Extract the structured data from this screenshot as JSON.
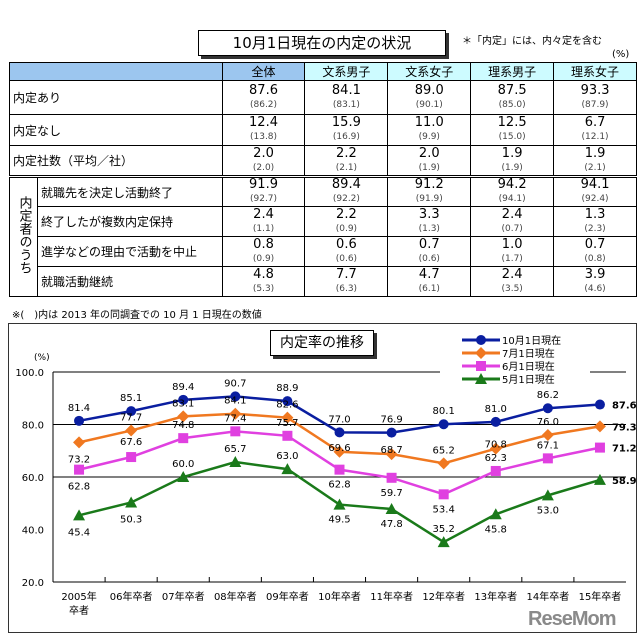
{
  "table": {
    "title": "10月1日現在の内定の状況",
    "note": "＊「内定」には、内々定を含む",
    "unit": "(%)",
    "columns": [
      "全体",
      "文系男子",
      "文系女子",
      "理系男子",
      "理系女子"
    ],
    "rows": [
      {
        "label": "内定あり",
        "values": [
          "87.6",
          "84.1",
          "89.0",
          "87.5",
          "93.3"
        ],
        "prev": [
          "(86.2)",
          "(83.1)",
          "(90.1)",
          "(85.0)",
          "(87.9)"
        ]
      },
      {
        "label": "内定なし",
        "values": [
          "12.4",
          "15.9",
          "11.0",
          "12.5",
          "6.7"
        ],
        "prev": [
          "(13.8)",
          "(16.9)",
          "(9.9)",
          "(15.0)",
          "(12.1)"
        ]
      },
      {
        "label": "内定社数（平均／社）",
        "values": [
          "2.0",
          "2.2",
          "2.0",
          "1.9",
          "1.9"
        ],
        "prev": [
          "(2.0)",
          "(2.1)",
          "(1.9)",
          "(1.9)",
          "(2.1)"
        ]
      }
    ],
    "group_label": "内定者のうち",
    "group_rows": [
      {
        "label": "就職先を決定し活動終了",
        "values": [
          "91.9",
          "89.4",
          "91.2",
          "94.2",
          "94.1"
        ],
        "prev": [
          "(92.7)",
          "(92.2)",
          "(91.9)",
          "(94.1)",
          "(92.4)"
        ]
      },
      {
        "label": "終了したが複数内定保持",
        "values": [
          "2.4",
          "2.2",
          "3.3",
          "2.4",
          "1.3"
        ],
        "prev": [
          "(1.1)",
          "(0.9)",
          "(1.3)",
          "(0.7)",
          "(2.3)"
        ]
      },
      {
        "label": "進学などの理由で活動を中止",
        "values": [
          "0.8",
          "0.6",
          "0.7",
          "1.0",
          "0.7"
        ],
        "prev": [
          "(0.9)",
          "(0.6)",
          "(0.6)",
          "(1.7)",
          "(0.8)"
        ]
      },
      {
        "label": "就職活動継続",
        "values": [
          "4.8",
          "7.7",
          "4.7",
          "2.4",
          "3.9"
        ],
        "prev": [
          "(5.3)",
          "(6.3)",
          "(6.1)",
          "(3.5)",
          "(4.6)"
        ]
      }
    ],
    "footnote": "※(　)内は 2013 年の同調査での 10 月 1 日現在の数値"
  },
  "chart_data": {
    "type": "line",
    "title": "内定率の推移",
    "ylabel": "(%)",
    "ylim": [
      20,
      100
    ],
    "yticks": [
      "100.0",
      "80.0",
      "60.0",
      "40.0",
      "20.0"
    ],
    "categories": [
      "2005年卒者",
      "06年卒者",
      "07年卒者",
      "08年卒者",
      "09年卒者",
      "10年卒者",
      "11年卒者",
      "12年卒者",
      "13年卒者",
      "14年卒者",
      "15年卒者"
    ],
    "grid": "horizontal",
    "legend": "top-right",
    "series": [
      {
        "name": "10月1日現在",
        "color": "#0a1ea0",
        "marker": "circle",
        "values": [
          81.4,
          85.1,
          89.4,
          90.7,
          88.9,
          77.0,
          76.9,
          80.1,
          81.0,
          86.2,
          87.6
        ]
      },
      {
        "name": "7月1日現在",
        "color": "#f07820",
        "marker": "diamond",
        "values": [
          73.2,
          77.7,
          83.1,
          84.1,
          82.6,
          69.6,
          68.7,
          65.2,
          70.8,
          76.0,
          79.3
        ]
      },
      {
        "name": "6月1日現在",
        "color": "#e040e0",
        "marker": "square",
        "values": [
          62.8,
          67.6,
          74.8,
          77.4,
          75.7,
          62.8,
          59.7,
          53.4,
          62.3,
          67.1,
          71.2
        ]
      },
      {
        "name": "5月1日現在",
        "color": "#1a7a1a",
        "marker": "triangle",
        "values": [
          45.4,
          50.3,
          60.0,
          65.7,
          63.0,
          49.5,
          47.8,
          35.2,
          45.8,
          53.0,
          58.9
        ]
      }
    ]
  },
  "logo": "ReseMom"
}
